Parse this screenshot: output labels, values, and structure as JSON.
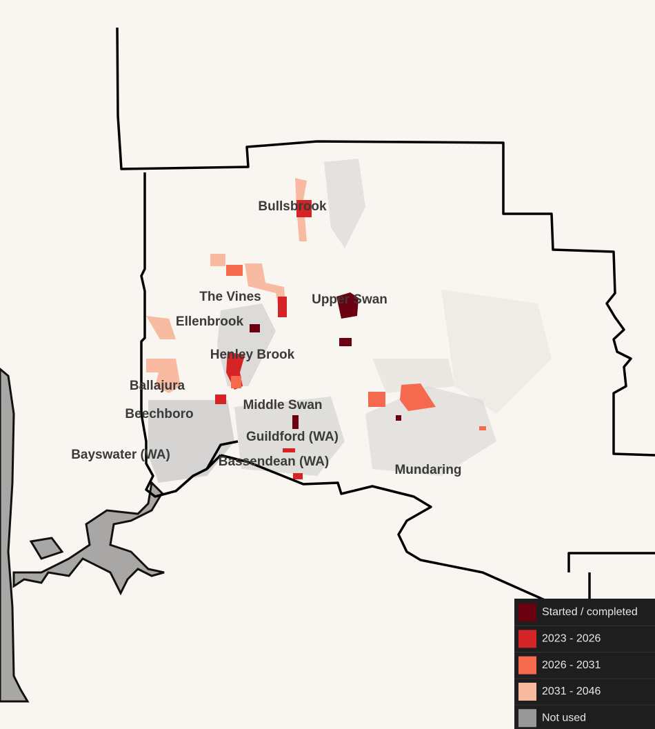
{
  "places": [
    {
      "label": "Bullsbrook"
    },
    {
      "label": "The Vines"
    },
    {
      "label": "Upper Swan"
    },
    {
      "label": "Ellenbrook"
    },
    {
      "label": "Henley Brook"
    },
    {
      "label": "Ballajura"
    },
    {
      "label": "Middle Swan"
    },
    {
      "label": "Beechboro"
    },
    {
      "label": "Guildford (WA)"
    },
    {
      "label": "Bayswater (WA)"
    },
    {
      "label": "Bassendean (WA)"
    },
    {
      "label": "Mundaring"
    }
  ],
  "legend": {
    "items": [
      {
        "label": "Started / completed",
        "color": "#6b0010"
      },
      {
        "label": "2023 - 2026",
        "color": "#d42426"
      },
      {
        "label": "2026 - 2031",
        "color": "#f5694f"
      },
      {
        "label": "2031 - 2046",
        "color": "#f8bba2"
      },
      {
        "label": "Not used",
        "color": "#9a9896"
      }
    ]
  }
}
